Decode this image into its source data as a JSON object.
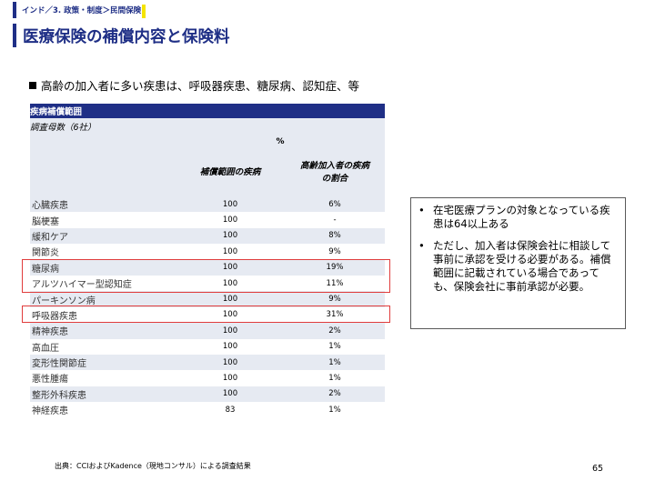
{
  "breadcrumb": "インド／3. 政策・制度＞民間保険",
  "title": "医療保険の補償内容と保険料",
  "subheading": "高齢の加入者に多い疾患は、呼吸器疾患、糖尿病、認知症、等",
  "table": {
    "header": "疾病補償範囲",
    "sample": "調査母数（6社）",
    "unit": "%",
    "col1": "補償範囲の疾病",
    "col2_line1": "高齢加入者の疾病",
    "col2_line2": "の割合",
    "rows": [
      {
        "name": "心臓疾患",
        "coverage": "100",
        "share": "6%"
      },
      {
        "name": "脳梗塞",
        "coverage": "100",
        "share": "-"
      },
      {
        "name": "緩和ケア",
        "coverage": "100",
        "share": "8%"
      },
      {
        "name": "関節炎",
        "coverage": "100",
        "share": "9%"
      },
      {
        "name": "糖尿病",
        "coverage": "100",
        "share": "19%"
      },
      {
        "name": "アルツハイマー型認知症",
        "coverage": "100",
        "share": "11%"
      },
      {
        "name": "パーキンソン病",
        "coverage": "100",
        "share": "9%"
      },
      {
        "name": "呼吸器疾患",
        "coverage": "100",
        "share": "31%"
      },
      {
        "name": "精神疾患",
        "coverage": "100",
        "share": "2%"
      },
      {
        "name": "高血圧",
        "coverage": "100",
        "share": "1%"
      },
      {
        "name": "変形性関節症",
        "coverage": "100",
        "share": "1%"
      },
      {
        "name": "悪性腫瘍",
        "coverage": "100",
        "share": "1%"
      },
      {
        "name": "整形外科疾患",
        "coverage": "100",
        "share": "2%"
      },
      {
        "name": "神経疾患",
        "coverage": "83",
        "share": "1%"
      }
    ]
  },
  "notes": [
    {
      "bullet": "•",
      "text": "在宅医療プランの対象となっている疾患は64以上ある"
    },
    {
      "bullet": "•",
      "text": "ただし、加入者は保険会社に相談して事前に承認を受ける必要がある。補償範囲に記載されている場合であっても、保険会社に事前承認が必要。"
    }
  ],
  "source": "出典：CCIおよびKadence（現地コンサル）による調査結果",
  "page_number": "65",
  "colors": {
    "accent": "#1f2f86",
    "highlight": "#e03c3c",
    "marker": "#f5e400",
    "row_shade": "#e6eaf2"
  }
}
